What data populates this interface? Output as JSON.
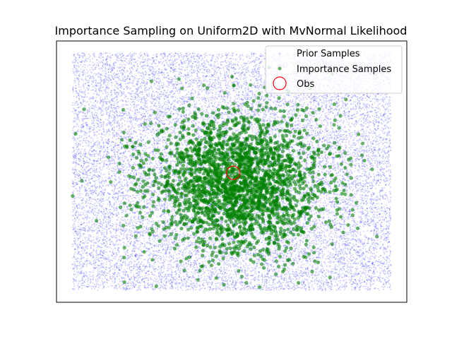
{
  "chart_data": {
    "type": "scatter",
    "title": "Importance Sampling on Uniform2D with MvNormal Likelihood",
    "xlabel": "",
    "ylabel": "",
    "xlim": [
      -0.05,
      1.05
    ],
    "ylim": [
      -0.05,
      1.05
    ],
    "grid": false,
    "legend_position": "top-right",
    "axis_ticks_visible": false,
    "series": [
      {
        "name": "Prior Samples",
        "kind": "uniform",
        "color": "#0000ff",
        "x_range": [
          0.0,
          1.0
        ],
        "y_range": [
          0.0,
          1.0
        ],
        "approx_count": 20000
      },
      {
        "name": "Importance Samples",
        "kind": "gaussian",
        "color": "#008000",
        "center": [
          0.52,
          0.45
        ],
        "std": [
          0.14,
          0.15
        ],
        "approx_count": 2500
      },
      {
        "name": "Obs",
        "kind": "marker",
        "color": "#ff0000",
        "x": [
          0.505
        ],
        "y": [
          0.495
        ]
      }
    ]
  }
}
